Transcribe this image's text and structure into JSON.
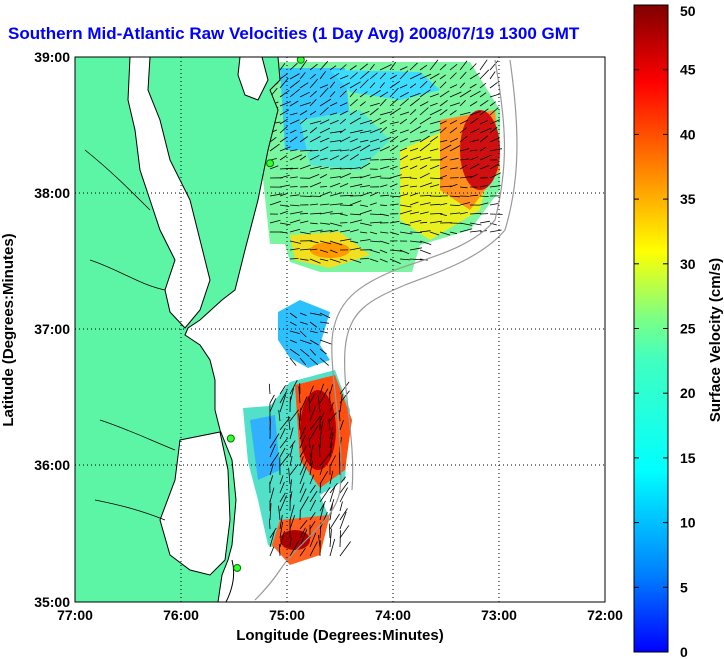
{
  "title": "Southern Mid-Atlantic Raw Velocities (1 Day Avg) 2008/07/19 1300 GMT",
  "map": {
    "x_label": "Longitude (Degrees:Minutes)",
    "y_label": "Latitude (Degrees:Minutes)",
    "x_ticks": [
      "77:00",
      "76:00",
      "75:00",
      "74:00",
      "73:00",
      "72:00"
    ],
    "y_ticks": [
      "39:00",
      "38:00",
      "37:00",
      "36:00",
      "35:00"
    ],
    "lon_range": [
      -77,
      -72
    ],
    "lat_range": [
      35,
      39
    ],
    "land_color": "#5cf5a5",
    "grid": "dotted",
    "stations": [
      {
        "lon": -74.87,
        "lat": 38.98
      },
      {
        "lon": -75.16,
        "lat": 38.22
      },
      {
        "lon": -75.53,
        "lat": 36.2
      },
      {
        "lon": -75.47,
        "lat": 35.25
      }
    ]
  },
  "colorbar": {
    "label": "Surface Velocity (cm/s)",
    "ticks": [
      "0",
      "5",
      "10",
      "15",
      "20",
      "25",
      "30",
      "35",
      "40",
      "45",
      "50"
    ],
    "min": 0,
    "max": 50,
    "colormap": "jet"
  }
}
